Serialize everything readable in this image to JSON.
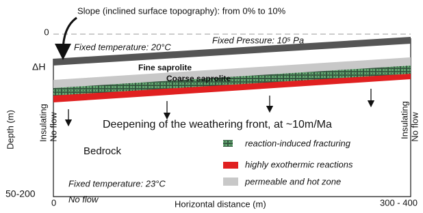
{
  "slope_note": "Slope  (inclined surface topography): from 0% to 10%",
  "top_boundary": {
    "depth_zero": "0",
    "temperature": "Fixed temperature: 20°C",
    "pressure": "Fixed Pressure: 10⁵ Pa"
  },
  "delta_h": "ΔH",
  "layers": {
    "fine": "Fine saprolite",
    "coarse": "Coarse saprolite"
  },
  "axes": {
    "y_label": "Depth  (m)",
    "y_bottom": "50-200",
    "x_start": "0",
    "x_label": "Horizontal distance  (m)",
    "x_end": "300 - 400"
  },
  "left_boundary": {
    "insulating": "Insulating",
    "flow": "No flow"
  },
  "right_boundary": {
    "insulating": "Insulating",
    "flow": "No flow"
  },
  "front_note": "Deepening of the weathering front, at ~10m/Ma",
  "bedrock": "Bedrock",
  "legend": [
    "reaction-induced fracturing",
    "highly exothermic reactions",
    "permeable and hot zone"
  ],
  "bottom_boundary": {
    "temperature": "Fixed temperature: 23°C",
    "flow": "No flow"
  }
}
